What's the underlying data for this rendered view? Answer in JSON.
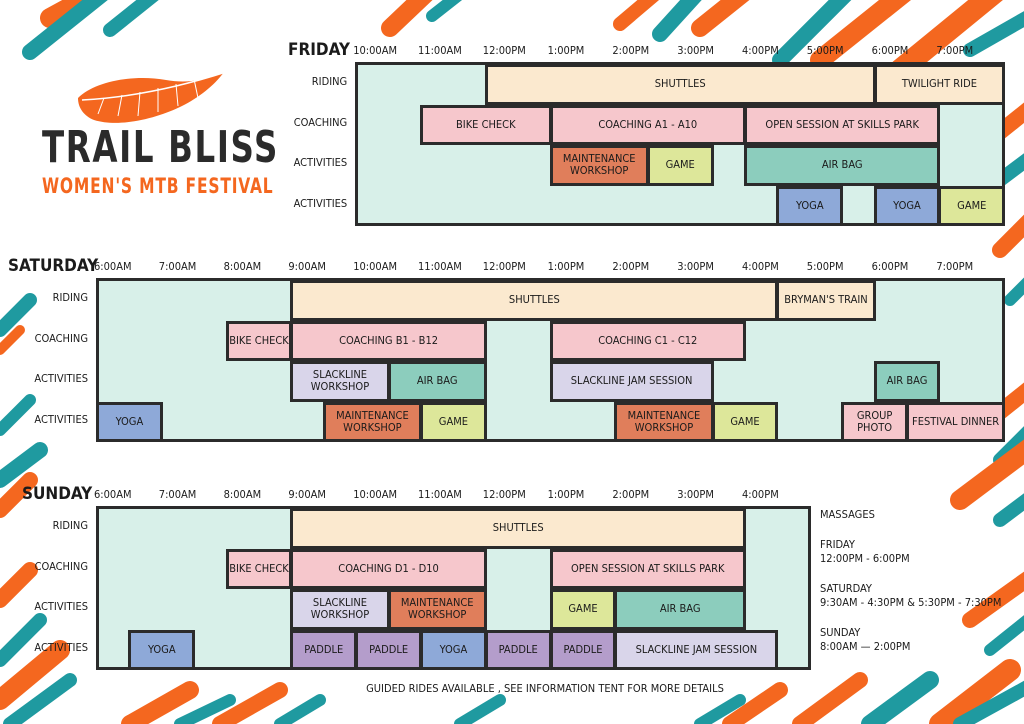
{
  "colors": {
    "panel": "#d8f0e9",
    "border": "#2b2b2b",
    "shuttles": "#fbe9cf",
    "coaching": "#f6c7cc",
    "maintenance": "#e07e5b",
    "game": "#dde79a",
    "airbag": "#8ccdbd",
    "yoga": "#8ea9d8",
    "slackline": "#d9d5ea",
    "paddle": "#b49dcb",
    "accent_orange": "#f4671f",
    "accent_teal": "#1f9aa0"
  },
  "brand": {
    "title": "TRAIL BLISS",
    "subtitle": "WOMEN'S MTB FESTIVAL",
    "logo_icon": "feather-icon"
  },
  "days": [
    {
      "name": "FRIDAY",
      "times": [
        "10:00AM",
        "11:00AM",
        "12:00PM",
        "1:00PM",
        "2:00PM",
        "3:00PM",
        "4:00PM",
        "5:00PM",
        "6:00PM",
        "7:00PM"
      ],
      "lanes": [
        "RIDING",
        "COACHING",
        "ACTIVITIES",
        "ACTIVITIES"
      ],
      "events": [
        {
          "label": "SHUTTLES",
          "row": 0,
          "start": 12,
          "end": 18,
          "type": "shuttles"
        },
        {
          "label": "TWILIGHT RIDE",
          "row": 0,
          "start": 18,
          "end": 20,
          "type": "shuttles"
        },
        {
          "label": "BIKE CHECK",
          "row": 1,
          "start": 11,
          "end": 13,
          "type": "coaching"
        },
        {
          "label": "COACHING A1 - A10",
          "row": 1,
          "start": 13,
          "end": 16,
          "type": "coaching"
        },
        {
          "label": "OPEN SESSION AT SKILLS PARK",
          "row": 1,
          "start": 16,
          "end": 19,
          "type": "coaching"
        },
        {
          "label": "MAINTENANCE\nWORKSHOP",
          "row": 2,
          "start": 13,
          "end": 14.5,
          "type": "maintenance"
        },
        {
          "label": "GAME",
          "row": 2,
          "start": 14.5,
          "end": 15.5,
          "type": "game"
        },
        {
          "label": "AIR BAG",
          "row": 2,
          "start": 16,
          "end": 19,
          "type": "airbag"
        },
        {
          "label": "YOGA",
          "row": 3,
          "start": 16.5,
          "end": 17.5,
          "type": "yoga"
        },
        {
          "label": "YOGA",
          "row": 3,
          "start": 18,
          "end": 19,
          "type": "yoga"
        },
        {
          "label": "GAME",
          "row": 3,
          "start": 19,
          "end": 20,
          "type": "game"
        }
      ]
    },
    {
      "name": "SATURDAY",
      "times": [
        "6:00AM",
        "7:00AM",
        "8:00AM",
        "9:00AM",
        "10:00AM",
        "11:00AM",
        "12:00PM",
        "1:00PM",
        "2:00PM",
        "3:00PM",
        "4:00PM",
        "5:00PM",
        "6:00PM",
        "7:00PM"
      ],
      "lanes": [
        "RIDING",
        "COACHING",
        "ACTIVITIES",
        "ACTIVITIES"
      ],
      "events": [
        {
          "label": "SHUTTLES",
          "row": 0,
          "start": 9,
          "end": 16.5,
          "type": "shuttles"
        },
        {
          "label": "BRYMAN'S TRAIN",
          "row": 0,
          "start": 16.5,
          "end": 18,
          "type": "shuttles"
        },
        {
          "label": "BIKE CHECK",
          "row": 1,
          "start": 8,
          "end": 9,
          "type": "coaching"
        },
        {
          "label": "COACHING B1 - B12",
          "row": 1,
          "start": 9,
          "end": 12,
          "type": "coaching"
        },
        {
          "label": "COACHING C1 - C12",
          "row": 1,
          "start": 13,
          "end": 16,
          "type": "coaching"
        },
        {
          "label": "SLACKLINE\nWORKSHOP",
          "row": 2,
          "start": 9,
          "end": 10.5,
          "type": "slackline"
        },
        {
          "label": "AIR BAG",
          "row": 2,
          "start": 10.5,
          "end": 12,
          "type": "airbag"
        },
        {
          "label": "SLACKLINE JAM SESSION",
          "row": 2,
          "start": 13,
          "end": 15.5,
          "type": "slackline"
        },
        {
          "label": "AIR BAG",
          "row": 2,
          "start": 18,
          "end": 19,
          "type": "airbag"
        },
        {
          "label": "YOGA",
          "row": 3,
          "start": 6,
          "end": 7,
          "type": "yoga"
        },
        {
          "label": "MAINTENANCE\nWORKSHOP",
          "row": 3,
          "start": 9.5,
          "end": 11,
          "type": "maintenance"
        },
        {
          "label": "GAME",
          "row": 3,
          "start": 11,
          "end": 12,
          "type": "game"
        },
        {
          "label": "MAINTENANCE\nWORKSHOP",
          "row": 3,
          "start": 14,
          "end": 15.5,
          "type": "maintenance"
        },
        {
          "label": "GAME",
          "row": 3,
          "start": 15.5,
          "end": 16.5,
          "type": "game"
        },
        {
          "label": "GROUP PHOTO",
          "row": 3,
          "start": 17.5,
          "end": 18.5,
          "type": "coaching"
        },
        {
          "label": "FESTIVAL DINNER",
          "row": 3,
          "start": 18.5,
          "end": 20,
          "type": "coaching"
        }
      ]
    },
    {
      "name": "SUNDAY",
      "times": [
        "6:00AM",
        "7:00AM",
        "8:00AM",
        "9:00AM",
        "10:00AM",
        "11:00AM",
        "12:00PM",
        "1:00PM",
        "2:00PM",
        "3:00PM",
        "4:00PM"
      ],
      "lanes": [
        "RIDING",
        "COACHING",
        "ACTIVITIES",
        "ACTIVITIES"
      ],
      "events": [
        {
          "label": "SHUTTLES",
          "row": 0,
          "start": 9,
          "end": 16,
          "type": "shuttles"
        },
        {
          "label": "BIKE CHECK",
          "row": 1,
          "start": 8,
          "end": 9,
          "type": "coaching"
        },
        {
          "label": "COACHING D1 - D10",
          "row": 1,
          "start": 9,
          "end": 12,
          "type": "coaching"
        },
        {
          "label": "OPEN SESSION AT SKILLS PARK",
          "row": 1,
          "start": 13,
          "end": 16,
          "type": "coaching"
        },
        {
          "label": "SLACKLINE\nWORKSHOP",
          "row": 2,
          "start": 9,
          "end": 10.5,
          "type": "slackline"
        },
        {
          "label": "MAINTENANCE\nWORKSHOP",
          "row": 2,
          "start": 10.5,
          "end": 12,
          "type": "maintenance"
        },
        {
          "label": "GAME",
          "row": 2,
          "start": 13,
          "end": 14,
          "type": "game"
        },
        {
          "label": "AIR BAG",
          "row": 2,
          "start": 14,
          "end": 16,
          "type": "airbag"
        },
        {
          "label": "YOGA",
          "row": 3,
          "start": 6.5,
          "end": 7.5,
          "type": "yoga"
        },
        {
          "label": "PADDLE",
          "row": 3,
          "start": 9,
          "end": 10,
          "type": "paddle"
        },
        {
          "label": "PADDLE",
          "row": 3,
          "start": 10,
          "end": 11,
          "type": "paddle"
        },
        {
          "label": "YOGA",
          "row": 3,
          "start": 11,
          "end": 12,
          "type": "yoga"
        },
        {
          "label": "PADDLE",
          "row": 3,
          "start": 12,
          "end": 13,
          "type": "paddle"
        },
        {
          "label": "PADDLE",
          "row": 3,
          "start": 13,
          "end": 14,
          "type": "paddle"
        },
        {
          "label": "SLACKLINE JAM SESSION",
          "row": 3,
          "start": 14,
          "end": 16.5,
          "type": "slackline"
        }
      ]
    }
  ],
  "notes": {
    "title": "MASSAGES",
    "items": [
      {
        "day": "FRIDAY",
        "time": "12:00PM - 6:00PM"
      },
      {
        "day": "SATURDAY",
        "time": "9:30AM - 4:30PM & 5:30PM - 7:30PM"
      },
      {
        "day": "SUNDAY",
        "time": "8:00AM — 2:00PM"
      }
    ]
  },
  "footnote": "GUIDED RIDES AVAILABLE , SEE INFORMATION TENT FOR MORE DETAILS"
}
